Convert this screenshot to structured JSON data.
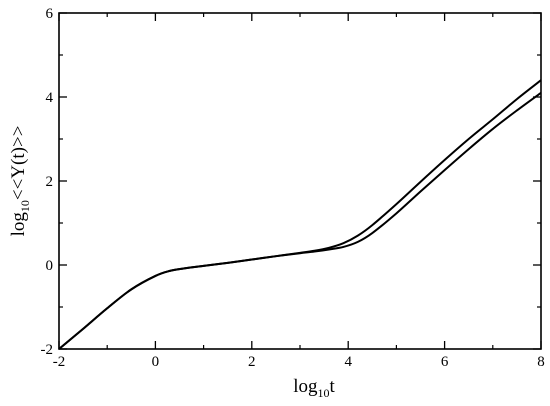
{
  "chart_data": {
    "type": "line",
    "title": "",
    "xlabel": {
      "prefix": "log",
      "sub": "10",
      "suffix": "t"
    },
    "ylabel": {
      "prefix": "log",
      "sub": "10",
      "suffix": "<<Y(t)>>"
    },
    "xlim": [
      -2,
      8
    ],
    "ylim": [
      -2,
      6
    ],
    "xticks": [
      -2,
      0,
      2,
      4,
      6,
      8
    ],
    "yticks": [
      -2,
      0,
      2,
      4,
      6
    ],
    "grid": false,
    "legend": "none",
    "series": [
      {
        "color": "#000000",
        "points": [
          [
            -2,
            -2.0
          ],
          [
            -1.5,
            -1.52
          ],
          [
            -1.0,
            -1.03
          ],
          [
            -0.5,
            -0.58
          ],
          [
            0,
            -0.26
          ],
          [
            0.3,
            -0.14
          ],
          [
            0.6,
            -0.08
          ],
          [
            1.0,
            -0.02
          ],
          [
            1.5,
            0.05
          ],
          [
            2.0,
            0.13
          ],
          [
            2.5,
            0.21
          ],
          [
            3.0,
            0.29
          ],
          [
            3.3,
            0.34
          ],
          [
            3.6,
            0.41
          ],
          [
            3.9,
            0.52
          ],
          [
            4.2,
            0.7
          ],
          [
            4.5,
            0.95
          ],
          [
            5.0,
            1.45
          ],
          [
            5.5,
            1.98
          ],
          [
            6.0,
            2.5
          ],
          [
            6.5,
            3.0
          ],
          [
            7.0,
            3.47
          ],
          [
            7.5,
            3.95
          ],
          [
            8.0,
            4.4
          ]
        ]
      },
      {
        "color": "#000000",
        "points": [
          [
            -2,
            -2.0
          ],
          [
            -1.5,
            -1.52
          ],
          [
            -1.0,
            -1.03
          ],
          [
            -0.5,
            -0.58
          ],
          [
            0,
            -0.26
          ],
          [
            0.3,
            -0.14
          ],
          [
            0.6,
            -0.08
          ],
          [
            1.0,
            -0.02
          ],
          [
            1.5,
            0.05
          ],
          [
            2.0,
            0.13
          ],
          [
            2.5,
            0.21
          ],
          [
            3.0,
            0.28
          ],
          [
            3.3,
            0.32
          ],
          [
            3.6,
            0.37
          ],
          [
            3.9,
            0.43
          ],
          [
            4.2,
            0.55
          ],
          [
            4.5,
            0.76
          ],
          [
            5.0,
            1.23
          ],
          [
            5.5,
            1.75
          ],
          [
            6.0,
            2.26
          ],
          [
            6.5,
            2.76
          ],
          [
            7.0,
            3.24
          ],
          [
            7.5,
            3.68
          ],
          [
            8.0,
            4.1
          ]
        ]
      }
    ]
  }
}
